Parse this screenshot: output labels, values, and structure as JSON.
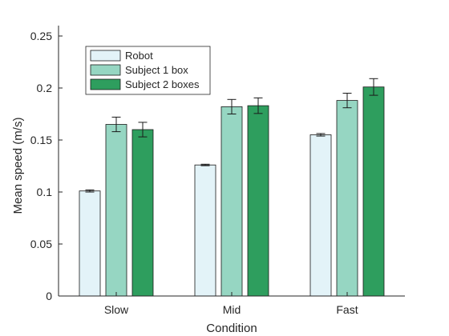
{
  "chart_data": {
    "type": "bar",
    "title": "",
    "xlabel": "Condition",
    "ylabel": "Mean speed (m/s)",
    "categories": [
      "Slow",
      "Mid",
      "Fast"
    ],
    "ylim": [
      0,
      0.26
    ],
    "yticks": [
      0,
      0.05,
      0.1,
      0.15,
      0.2,
      0.25
    ],
    "ytick_labels": [
      "0",
      "0.05",
      "0.1",
      "0.15",
      "0.2",
      "0.25"
    ],
    "grid": false,
    "legend_position": "top-left",
    "series": [
      {
        "name": "Robot",
        "color": "#e3f3f8",
        "values": [
          0.101,
          0.126,
          0.155
        ],
        "errors": [
          0.001,
          0.0007,
          0.0012
        ]
      },
      {
        "name": "Subject 1 box",
        "color": "#96d6c2",
        "values": [
          0.165,
          0.182,
          0.188
        ],
        "errors": [
          0.007,
          0.007,
          0.007
        ]
      },
      {
        "name": "Subject 2 boxes",
        "color": "#2e9e5e",
        "values": [
          0.16,
          0.183,
          0.201
        ],
        "errors": [
          0.007,
          0.0075,
          0.008
        ]
      }
    ]
  }
}
